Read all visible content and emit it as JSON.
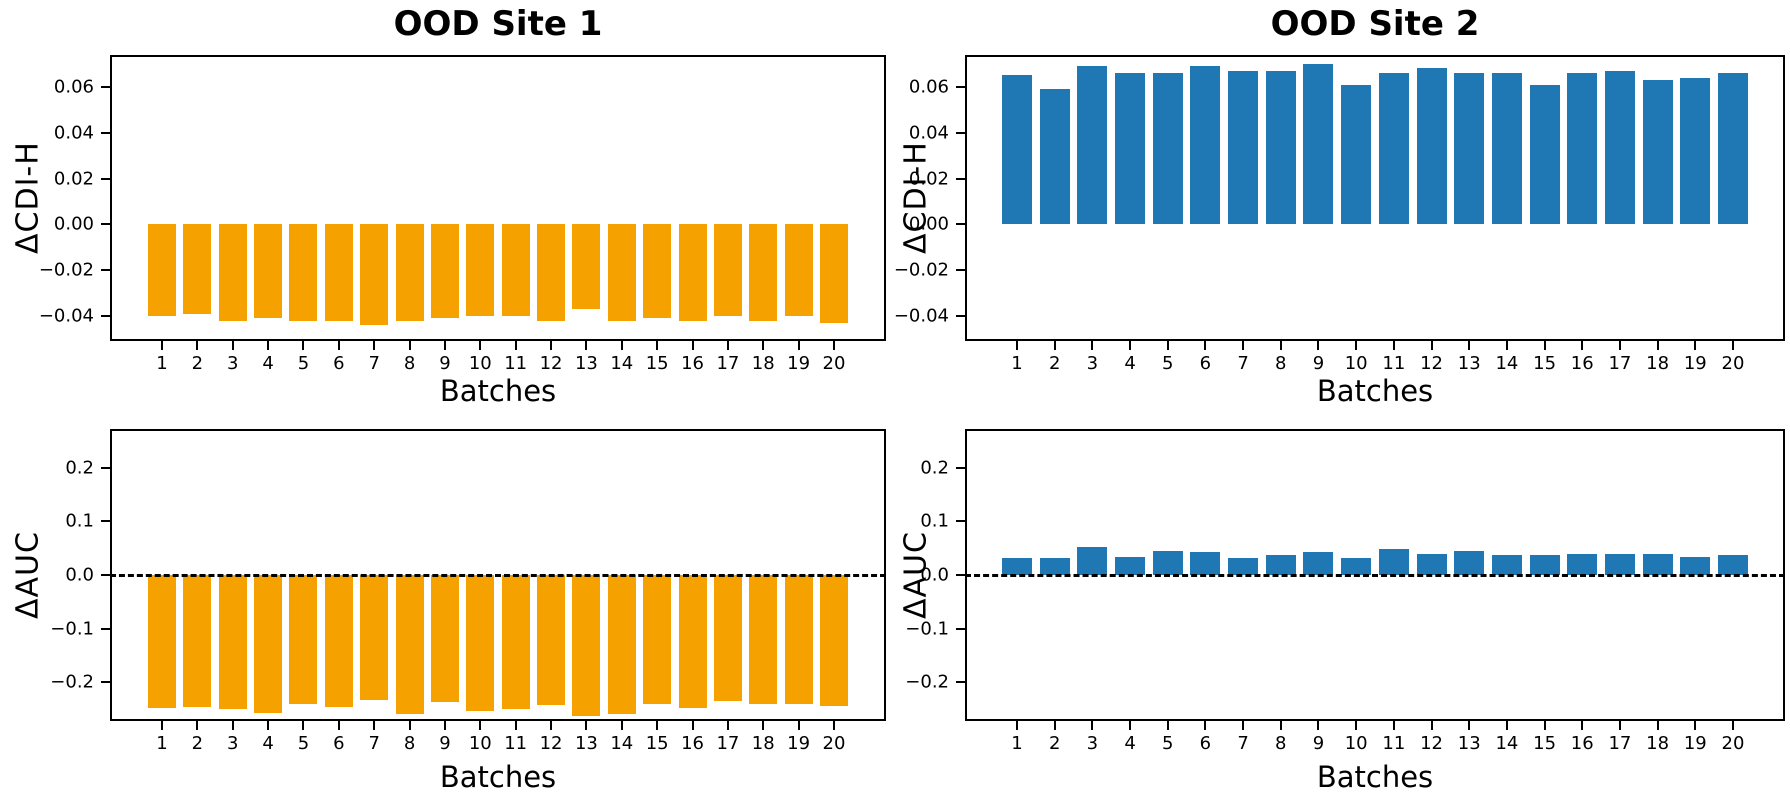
{
  "figure": {
    "background": "#ffffff",
    "bar_colors": {
      "site1": "#F5A201",
      "site2": "#1F77B4"
    },
    "axis_color": "#000000"
  },
  "chart_data": [
    {
      "type": "bar",
      "title": "OOD Site 1",
      "ylabel": "ΔCDI-H",
      "xlabel": "Batches",
      "color": "#F5A201",
      "ylim": [
        -0.05,
        0.073
      ],
      "zero_line": false,
      "yticks": [
        {
          "label": "0.06",
          "value": 0.06
        },
        {
          "label": "0.04",
          "value": 0.04
        },
        {
          "label": "0.02",
          "value": 0.02
        },
        {
          "label": "0.00",
          "value": 0.0
        },
        {
          "label": "−0.02",
          "value": -0.02
        },
        {
          "label": "−0.04",
          "value": -0.04
        }
      ],
      "categories": [
        "1",
        "2",
        "3",
        "4",
        "5",
        "6",
        "7",
        "8",
        "9",
        "10",
        "11",
        "12",
        "13",
        "14",
        "15",
        "16",
        "17",
        "18",
        "19",
        "20"
      ],
      "values": [
        -0.04,
        -0.039,
        -0.042,
        -0.041,
        -0.042,
        -0.042,
        -0.044,
        -0.042,
        -0.041,
        -0.04,
        -0.04,
        -0.042,
        -0.037,
        -0.042,
        -0.041,
        -0.042,
        -0.04,
        -0.042,
        -0.04,
        -0.043
      ]
    },
    {
      "type": "bar",
      "title": "OOD Site 2",
      "ylabel": "ΔCDI-H",
      "xlabel": "Batches",
      "color": "#1F77B4",
      "ylim": [
        -0.05,
        0.073
      ],
      "zero_line": false,
      "yticks": [
        {
          "label": "0.06",
          "value": 0.06
        },
        {
          "label": "0.04",
          "value": 0.04
        },
        {
          "label": "0.02",
          "value": 0.02
        },
        {
          "label": "0.00",
          "value": 0.0
        },
        {
          "label": "−0.02",
          "value": -0.02
        },
        {
          "label": "−0.04",
          "value": -0.04
        }
      ],
      "categories": [
        "1",
        "2",
        "3",
        "4",
        "5",
        "6",
        "7",
        "8",
        "9",
        "10",
        "11",
        "12",
        "13",
        "14",
        "15",
        "16",
        "17",
        "18",
        "19",
        "20"
      ],
      "values": [
        0.065,
        0.059,
        0.069,
        0.066,
        0.066,
        0.069,
        0.067,
        0.067,
        0.07,
        0.061,
        0.066,
        0.068,
        0.066,
        0.066,
        0.061,
        0.066,
        0.067,
        0.063,
        0.064,
        0.066
      ]
    },
    {
      "type": "bar",
      "title": "",
      "ylabel": "ΔAUC",
      "xlabel": "Batches",
      "color": "#F5A201",
      "ylim": [
        -0.268,
        0.268
      ],
      "zero_line": true,
      "yticks": [
        {
          "label": "0.2",
          "value": 0.2
        },
        {
          "label": "0.1",
          "value": 0.1
        },
        {
          "label": "0.0",
          "value": 0.0
        },
        {
          "label": "−0.1",
          "value": -0.1
        },
        {
          "label": "−0.2",
          "value": -0.2
        }
      ],
      "categories": [
        "1",
        "2",
        "3",
        "4",
        "5",
        "6",
        "7",
        "8",
        "9",
        "10",
        "11",
        "12",
        "13",
        "14",
        "15",
        "16",
        "17",
        "18",
        "19",
        "20"
      ],
      "values": [
        -0.247,
        -0.246,
        -0.249,
        -0.256,
        -0.24,
        -0.246,
        -0.232,
        -0.258,
        -0.237,
        -0.254,
        -0.25,
        -0.242,
        -0.262,
        -0.259,
        -0.241,
        -0.247,
        -0.235,
        -0.241,
        -0.24,
        -0.244
      ]
    },
    {
      "type": "bar",
      "title": "",
      "ylabel": "ΔAUC",
      "xlabel": "Batches",
      "color": "#1F77B4",
      "ylim": [
        -0.268,
        0.268
      ],
      "zero_line": true,
      "yticks": [
        {
          "label": "0.2",
          "value": 0.2
        },
        {
          "label": "0.1",
          "value": 0.1
        },
        {
          "label": "0.0",
          "value": 0.0
        },
        {
          "label": "−0.1",
          "value": -0.1
        },
        {
          "label": "−0.2",
          "value": -0.2
        }
      ],
      "categories": [
        "1",
        "2",
        "3",
        "4",
        "5",
        "6",
        "7",
        "8",
        "9",
        "10",
        "11",
        "12",
        "13",
        "14",
        "15",
        "16",
        "17",
        "18",
        "19",
        "20"
      ],
      "values": [
        0.031,
        0.031,
        0.052,
        0.033,
        0.044,
        0.042,
        0.032,
        0.038,
        0.042,
        0.032,
        0.049,
        0.039,
        0.045,
        0.038,
        0.038,
        0.04,
        0.039,
        0.039,
        0.033,
        0.037
      ]
    }
  ]
}
